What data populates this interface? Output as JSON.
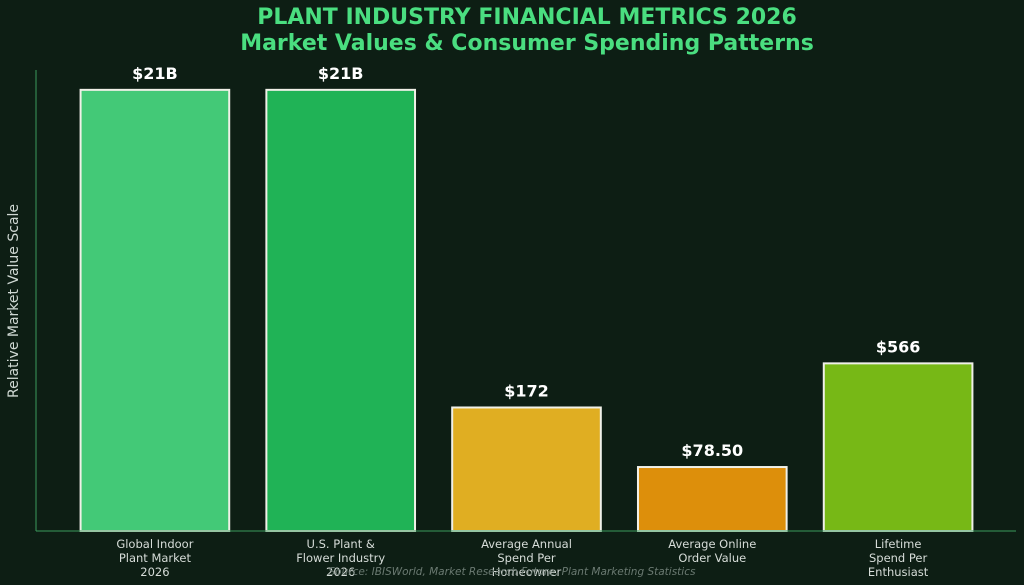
{
  "chart_data": {
    "type": "bar",
    "title": "PLANT INDUSTRY FINANCIAL METRICS 2026",
    "subtitle": "Market Values & Consumer Spending Patterns",
    "ylabel": "Relative Market Value Scale",
    "xlabel": "",
    "source": "Source: IBISWorld, Market Research Future, Plant Marketing Statistics",
    "categories": [
      [
        "Global Indoor",
        "Plant Market",
        "2026"
      ],
      [
        "U.S. Plant &",
        "Flower Industry",
        "2026"
      ],
      [
        "Average Annual",
        "Spend Per",
        "Homeowner"
      ],
      [
        "Average Online",
        "Order Value"
      ],
      [
        "Lifetime",
        "Spend Per",
        "Enthusiast"
      ]
    ],
    "values": [
      1000,
      1000,
      280,
      145,
      380
    ],
    "value_labels": [
      "$21B",
      "$21B",
      "$172",
      "$78.50",
      "$566"
    ],
    "ylim": [
      0,
      1045
    ],
    "grid": false,
    "colors": [
      "#43c977",
      "#20b356",
      "#e0ae22",
      "#dd8f0b",
      "#77b816"
    ],
    "bar_edge_color": "#f0f0e8",
    "axis_color": "#3a9a5c",
    "background": "#0d1e14"
  }
}
